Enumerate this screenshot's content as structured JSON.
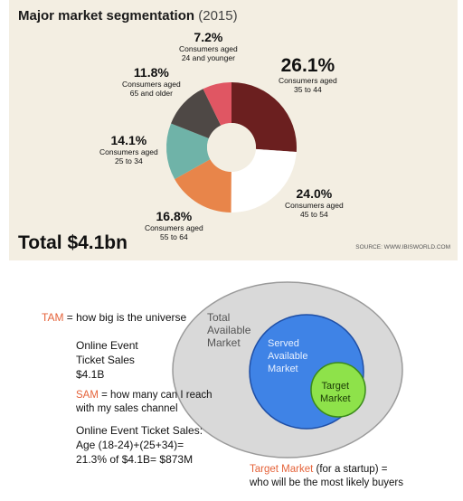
{
  "infographic": {
    "title": "Major market segmentation",
    "year": "(2015)",
    "total": "Total $4.1bn",
    "source": "SOURCE: WWW.IBISWORLD.COM"
  },
  "chart_data": {
    "type": "pie",
    "style": "donut",
    "title": "Major market segmentation (2015)",
    "total": "$4.1bn",
    "slices": [
      {
        "pct_label": "26.1%",
        "label": "Consumers aged\n35 to 44",
        "value": 26.1,
        "color": "#6b1f1f"
      },
      {
        "pct_label": "24.0%",
        "label": "Consumers aged\n45 to 54",
        "value": 24.0,
        "color": "#ffffff"
      },
      {
        "pct_label": "16.8%",
        "label": "Consumers aged\n55 to 64",
        "value": 16.8,
        "color": "#e8854a"
      },
      {
        "pct_label": "14.1%",
        "label": "Consumers aged\n25 to 34",
        "value": 14.1,
        "color": "#6fb3a8"
      },
      {
        "pct_label": "11.8%",
        "label": "Consumers aged\n65 and older",
        "value": 11.8,
        "color": "#4e4845"
      },
      {
        "pct_label": "7.2%",
        "label": "Consumers aged\n24 and younger",
        "value": 7.2,
        "color": "#e05663"
      }
    ],
    "colors": {
      "background": "#f3eee2",
      "hole": "#f3eee2"
    }
  },
  "slide": {
    "tam_term": "TAM",
    "tam_def": " = how big is the universe",
    "tam_lines": [
      "Online Event",
      "Ticket Sales",
      "$4.1B"
    ],
    "sam_term": "SAM",
    "sam_def_1": " = how many can I reach",
    "sam_def_2": "with my sales channel",
    "sam_lines": [
      "Online Event Ticket Sales:",
      "Age (18-24)+(25+34)=",
      "21.3% of $4.1B= $873M"
    ],
    "tm_term": "Target Market",
    "tm_def_1": " (for a startup) =",
    "tm_def_2": "who will be the most likely buyers",
    "venn": {
      "outer": "Total\nAvailable\nMarket",
      "middle": "Served\nAvailable\nMarket",
      "inner": "Target\nMarket",
      "colors": {
        "outer": "#d9d9d9",
        "middle": "#3f83e6",
        "inner": "#8ee24a",
        "term": "#e5633a"
      }
    }
  }
}
